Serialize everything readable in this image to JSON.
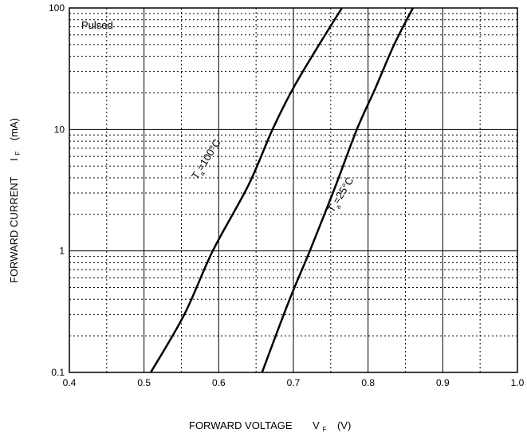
{
  "chart_data": {
    "type": "line",
    "title": "",
    "annotation": "Pulsed",
    "xlabel": {
      "text": "FORWARD VOLTAGE",
      "symbol": "V",
      "subscript": "F",
      "unit": "(V)"
    },
    "ylabel": {
      "text": "FORWARD CURRENT",
      "symbol": "I",
      "subscript": "F",
      "unit": "(mA)"
    },
    "xlim": [
      0.4,
      1.0
    ],
    "ylim": [
      0.1,
      100
    ],
    "yscale": "log",
    "grid": true,
    "x_ticks": [
      "0.4",
      "0.5",
      "0.6",
      "0.7",
      "0.8",
      "0.9",
      "1.0"
    ],
    "y_ticks": [
      "0.1",
      "1",
      "10",
      "100"
    ],
    "series": [
      {
        "name": "Ta=100°C",
        "label_main": "T",
        "label_sub": "a",
        "label_rest": "=100°C",
        "points": [
          [
            0.509,
            0.1
          ],
          [
            0.554,
            0.3
          ],
          [
            0.592,
            1.0
          ],
          [
            0.64,
            3.5
          ],
          [
            0.672,
            10
          ],
          [
            0.7,
            22
          ],
          [
            0.73,
            45
          ],
          [
            0.765,
            100
          ]
        ]
      },
      {
        "name": "Ta=25°C",
        "label_main": "T",
        "label_sub": "a",
        "label_rest": "=25°C",
        "points": [
          [
            0.658,
            0.1
          ],
          [
            0.695,
            0.4
          ],
          [
            0.722,
            1.0
          ],
          [
            0.757,
            3.5
          ],
          [
            0.785,
            10
          ],
          [
            0.81,
            22
          ],
          [
            0.835,
            50
          ],
          [
            0.86,
            100
          ]
        ]
      }
    ]
  }
}
